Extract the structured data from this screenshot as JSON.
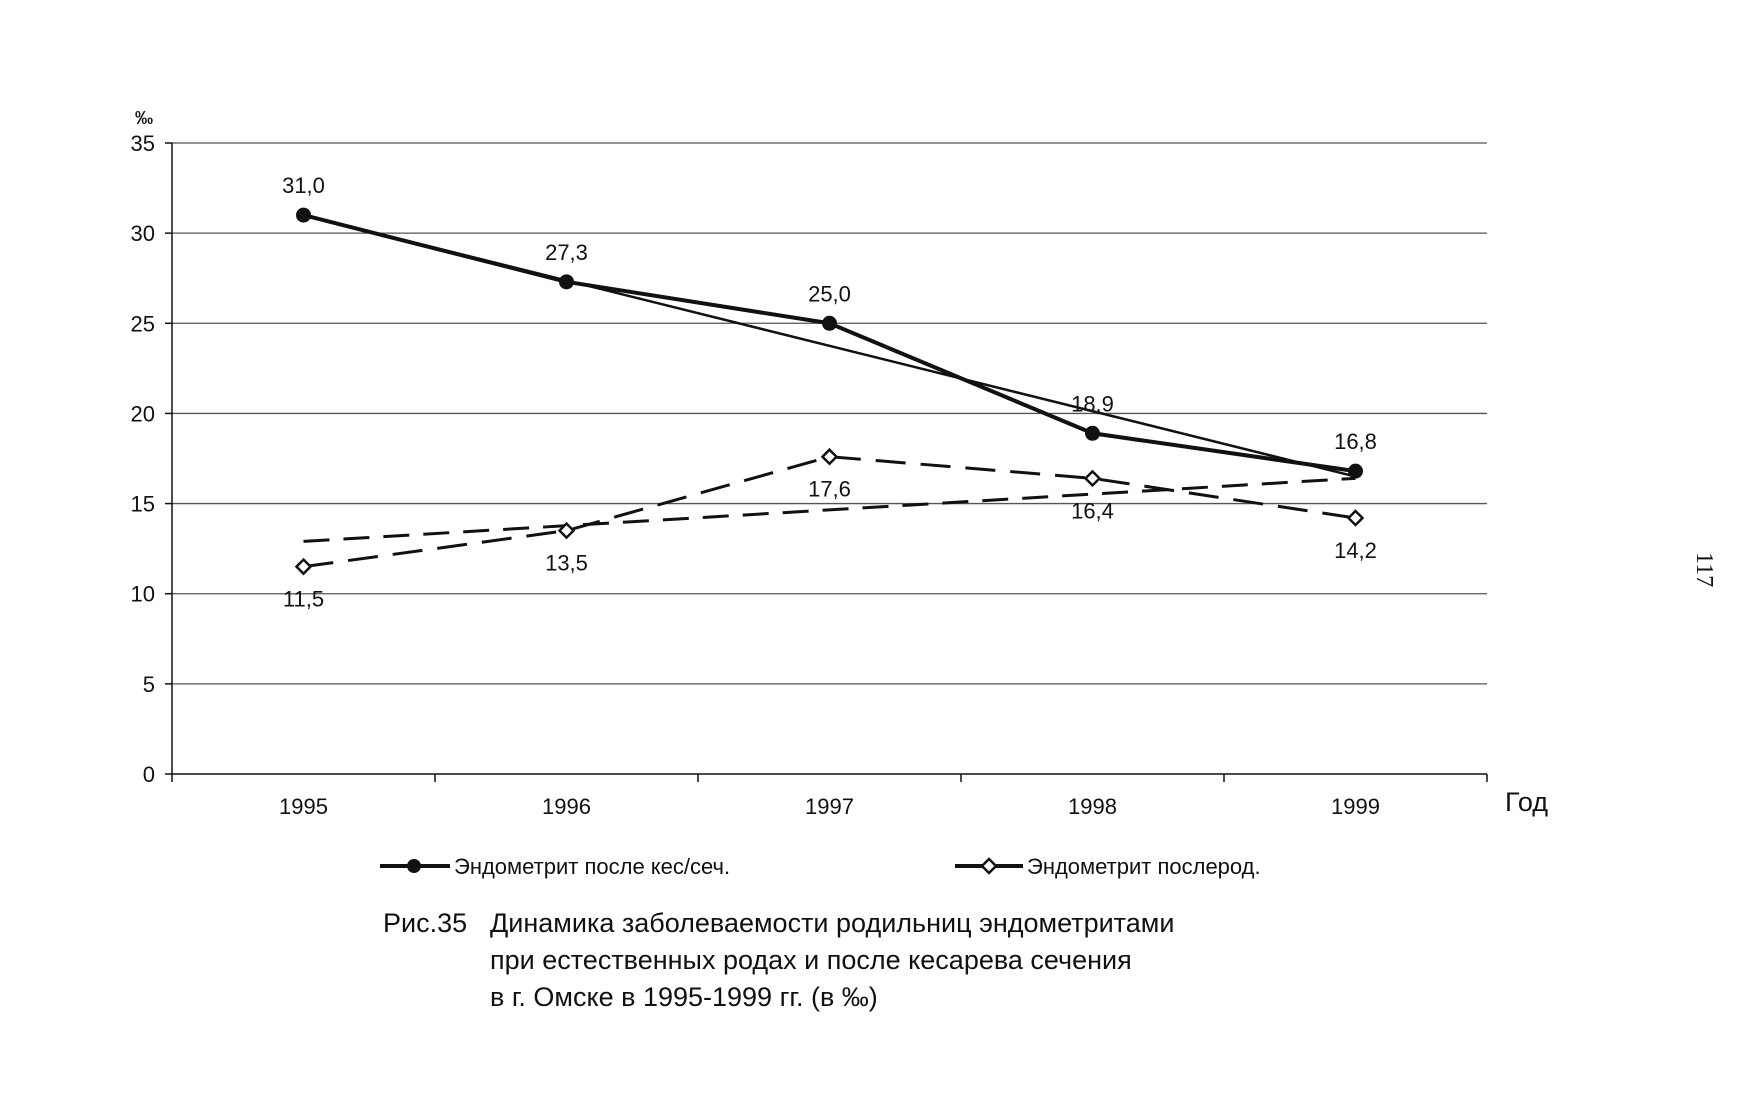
{
  "page_number": "117",
  "caption": {
    "prefix": "Рис.35",
    "lines": [
      "Динамика заболеваемости родильниц эндометритами",
      "при естественных родах и после кесарева сечения",
      "в г. Омске в 1995-1999 гг. (в ‰)"
    ]
  },
  "chart_data": {
    "type": "line",
    "title": "",
    "xlabel": "Год",
    "ylabel": "‰",
    "ylim": [
      0,
      35
    ],
    "yticks": [
      0,
      5,
      10,
      15,
      20,
      25,
      30,
      35
    ],
    "grid": true,
    "legend_position": "bottom",
    "categories": [
      "1995",
      "1996",
      "1997",
      "1998",
      "1999"
    ],
    "series": [
      {
        "name": "Эндометрит после кес/сеч.",
        "values": [
          31.0,
          27.3,
          25.0,
          18.9,
          16.8
        ],
        "labels": [
          "31,0",
          "27,3",
          "25,0",
          "18,9",
          "16,8"
        ],
        "marker": "filled-circle",
        "line_style": "solid",
        "color": "#111111",
        "trendline": {
          "start": 31.0,
          "end": 16.5
        }
      },
      {
        "name": "Эндометрит послерод.",
        "values": [
          11.5,
          13.5,
          17.6,
          16.4,
          14.2
        ],
        "labels": [
          "11,5",
          "13,5",
          "17,6",
          "16,4",
          "14,2"
        ],
        "marker": "open-diamond",
        "line_style": "dashed",
        "color": "#111111",
        "trendline": {
          "start": 12.9,
          "end": 16.4
        }
      }
    ]
  }
}
